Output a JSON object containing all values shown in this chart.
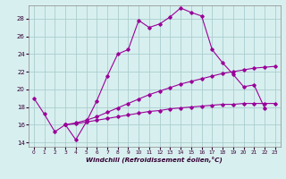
{
  "xlabel": "Windchill (Refroidissement éolien,°C)",
  "background_color": "#d8efef",
  "grid_color": "#aacece",
  "line_color": "#990099",
  "xlim": [
    -0.5,
    23.5
  ],
  "ylim": [
    13.5,
    29.5
  ],
  "yticks": [
    14,
    16,
    18,
    20,
    22,
    24,
    26,
    28
  ],
  "xticks": [
    0,
    1,
    2,
    3,
    4,
    5,
    6,
    7,
    8,
    9,
    10,
    11,
    12,
    13,
    14,
    15,
    16,
    17,
    18,
    19,
    20,
    21,
    22,
    23
  ],
  "series": [
    {
      "x": [
        0,
        1,
        2,
        3,
        4,
        5,
        6,
        7,
        8,
        9,
        10,
        11,
        12,
        13,
        14,
        15,
        16,
        17,
        18,
        19,
        20,
        21,
        22
      ],
      "y": [
        19.0,
        17.2,
        15.2,
        16.0,
        14.3,
        16.3,
        18.7,
        21.5,
        24.0,
        24.5,
        27.8,
        27.0,
        27.4,
        28.2,
        29.2,
        28.7,
        28.3,
        24.5,
        23.0,
        21.7,
        20.3,
        20.5,
        17.9
      ]
    },
    {
      "x": [
        3,
        4,
        5,
        6,
        7,
        8,
        9,
        10,
        11,
        12,
        13,
        14,
        15,
        16,
        17,
        18,
        19,
        20,
        21,
        22,
        23
      ],
      "y": [
        16.0,
        16.2,
        16.5,
        16.9,
        17.4,
        17.9,
        18.4,
        18.9,
        19.4,
        19.8,
        20.2,
        20.6,
        20.9,
        21.2,
        21.5,
        21.8,
        22.0,
        22.2,
        22.4,
        22.5,
        22.6
      ]
    },
    {
      "x": [
        3,
        4,
        5,
        6,
        7,
        8,
        9,
        10,
        11,
        12,
        13,
        14,
        15,
        16,
        17,
        18,
        19,
        20,
        21,
        22,
        23
      ],
      "y": [
        16.0,
        16.1,
        16.3,
        16.5,
        16.7,
        16.9,
        17.1,
        17.3,
        17.5,
        17.6,
        17.8,
        17.9,
        18.0,
        18.1,
        18.2,
        18.3,
        18.3,
        18.4,
        18.4,
        18.4,
        18.4
      ]
    }
  ]
}
